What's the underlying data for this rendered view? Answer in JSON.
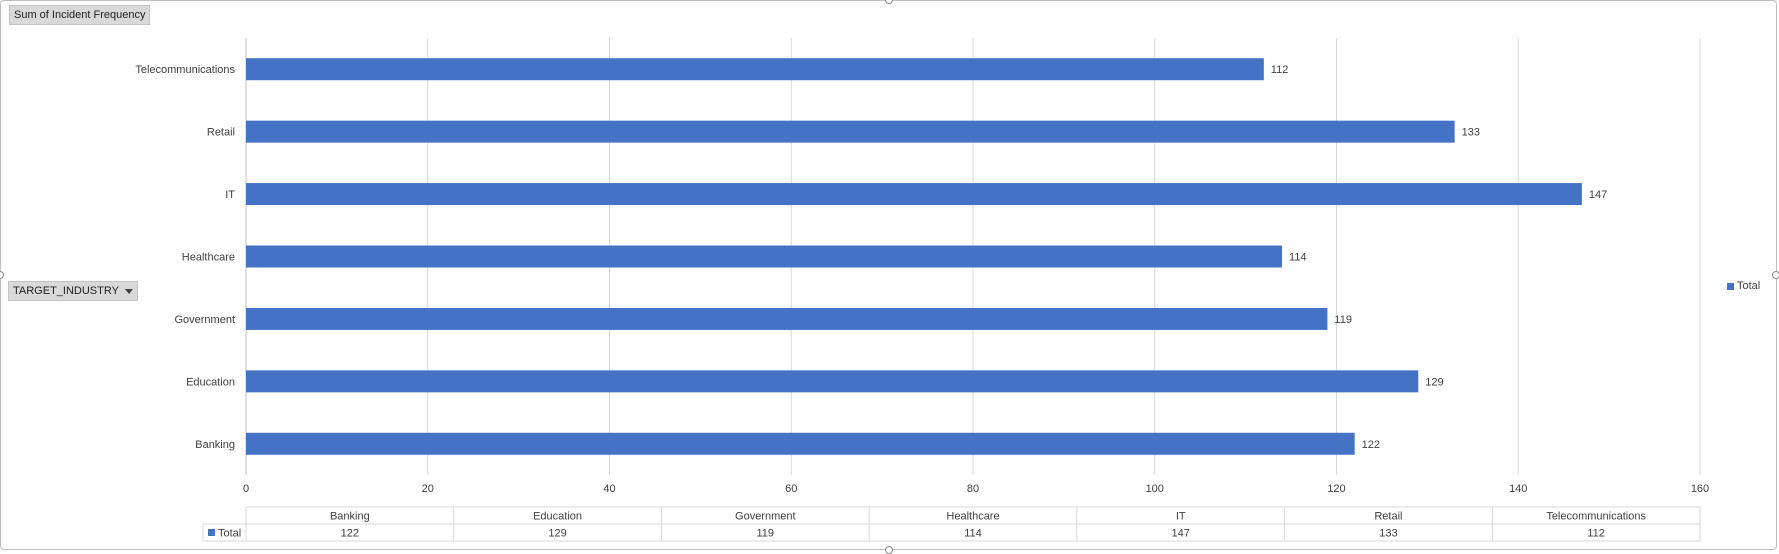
{
  "chart_data": {
    "type": "bar",
    "orientation": "horizontal",
    "title": "",
    "categories": [
      "Banking",
      "Education",
      "Government",
      "Healthcare",
      "IT",
      "Retail",
      "Telecommunications"
    ],
    "series": [
      {
        "name": "Total",
        "values": [
          122,
          129,
          119,
          114,
          147,
          133,
          112
        ],
        "color": "#4472c4"
      }
    ],
    "xlim": [
      0,
      160
    ],
    "x_ticks": [
      0,
      20,
      40,
      60,
      80,
      100,
      120,
      140,
      160
    ],
    "grid": true,
    "legend_position": "right",
    "data_labels": true,
    "data_table": true
  },
  "pivot": {
    "value_field_label": "Sum of Incident Frequency",
    "axis_field_label": "TARGET_INDUSTRY"
  },
  "legend": {
    "label": "Total"
  },
  "data_table": {
    "row_label": "Total"
  }
}
